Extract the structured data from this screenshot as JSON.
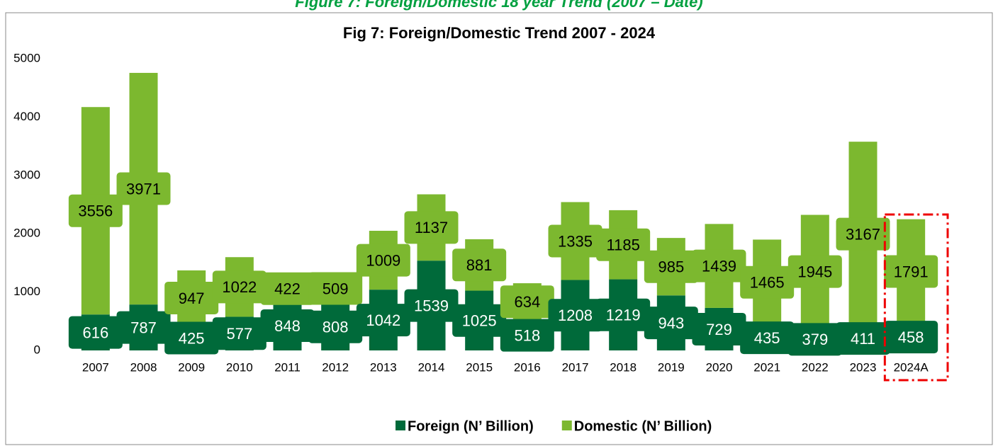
{
  "caption": "Figure 7: Foreign/Domestic 18 year Trend (2007 – Date)",
  "chart_data": {
    "type": "stacked_bar",
    "title": "Fig 7: Foreign/Domestic Trend 2007 - 2024",
    "categories": [
      "2007",
      "2008",
      "2009",
      "2010",
      "2011",
      "2012",
      "2013",
      "2014",
      "2015",
      "2016",
      "2017",
      "2018",
      "2019",
      "2020",
      "2021",
      "2022",
      "2023",
      "2024A"
    ],
    "series": [
      {
        "name": "Foreign (N’ Billion)",
        "color": "#006a3a",
        "values": [
          616,
          787,
          425,
          577,
          848,
          808,
          1042,
          1539,
          1025,
          518,
          1208,
          1219,
          943,
          729,
          435,
          379,
          411,
          458
        ]
      },
      {
        "name": "Domestic (N’ Billion)",
        "color": "#7cb82f",
        "values": [
          3556,
          3971,
          947,
          1022,
          422,
          509,
          1009,
          1137,
          881,
          634,
          1335,
          1185,
          985,
          1439,
          1465,
          1945,
          3167,
          1791
        ]
      }
    ],
    "ylim": [
      0,
      5000
    ],
    "yticks": [
      0,
      1000,
      2000,
      3000,
      4000,
      5000
    ],
    "grid": false,
    "legend": "bottom"
  }
}
